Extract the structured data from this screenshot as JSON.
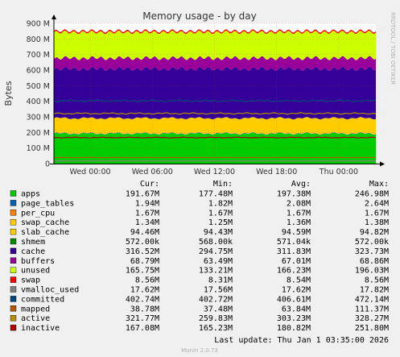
{
  "chart_data": {
    "type": "area",
    "title": "Memory usage - by day",
    "ylabel": "Bytes",
    "watermark": "RRDTOOL / TOBI OETIKER",
    "footer": "Munin 2.0.73",
    "last_update": "Last update: Thu Jan  1 03:35:00 2026",
    "ylim": [
      0,
      900
    ],
    "y_unit": "M",
    "yticks": [
      "0",
      "100 M",
      "200 M",
      "300 M",
      "400 M",
      "500 M",
      "600 M",
      "700 M",
      "800 M",
      "900 M"
    ],
    "x_range_hours": [
      -27.5,
      3.58
    ],
    "xticks": [
      {
        "label": "Wed 00:00",
        "hour": -24
      },
      {
        "label": "Wed 06:00",
        "hour": -18
      },
      {
        "label": "Wed 12:00",
        "hour": -12
      },
      {
        "label": "Wed 18:00",
        "hour": -6
      },
      {
        "label": "Thu 00:00",
        "hour": 0
      }
    ],
    "grid": true,
    "legend_placement": "bottom",
    "columns": [
      "Cur:",
      "Min:",
      "Avg:",
      "Max:"
    ],
    "stack_order": [
      "apps",
      "page_tables",
      "per_cpu",
      "swap_cache",
      "slab_cache",
      "shmem",
      "cache",
      "buffers",
      "unused",
      "swap"
    ],
    "series": [
      {
        "name": "apps",
        "color": "#00cc00",
        "cur": "191.67M",
        "min": "177.48M",
        "avg": "197.38M",
        "max": "246.98M",
        "value_m": 191.67
      },
      {
        "name": "page_tables",
        "color": "#0066b3",
        "cur": "1.94M",
        "min": "1.82M",
        "avg": "2.08M",
        "max": "2.64M",
        "value_m": 1.94
      },
      {
        "name": "per_cpu",
        "color": "#ff8000",
        "cur": "1.67M",
        "min": "1.67M",
        "avg": "1.67M",
        "max": "1.67M",
        "value_m": 1.67
      },
      {
        "name": "swap_cache",
        "color": "#ffcc00",
        "cur": "1.34M",
        "min": "1.25M",
        "avg": "1.36M",
        "max": "1.38M",
        "value_m": 1.34
      },
      {
        "name": "slab_cache",
        "color": "#ffcc00",
        "cur": "94.46M",
        "min": "94.43M",
        "avg": "94.59M",
        "max": "94.82M",
        "value_m": 94.46
      },
      {
        "name": "shmem",
        "color": "#008f00",
        "cur": "572.00k",
        "min": "568.00k",
        "avg": "571.04k",
        "max": "572.00k",
        "value_m": 0.57
      },
      {
        "name": "cache",
        "color": "#330099",
        "cur": "316.52M",
        "min": "294.75M",
        "avg": "311.83M",
        "max": "323.73M",
        "value_m": 316.52
      },
      {
        "name": "buffers",
        "color": "#990099",
        "cur": "68.79M",
        "min": "63.49M",
        "avg": "67.01M",
        "max": "68.86M",
        "value_m": 68.79
      },
      {
        "name": "unused",
        "color": "#ccff00",
        "cur": "165.75M",
        "min": "133.21M",
        "avg": "166.23M",
        "max": "196.03M",
        "value_m": 165.75
      },
      {
        "name": "swap",
        "color": "#ff0000",
        "cur": "8.56M",
        "min": "8.31M",
        "avg": "8.54M",
        "max": "8.56M",
        "value_m": 8.56
      },
      {
        "name": "vmalloc_used",
        "color": "#808080",
        "cur": "17.62M",
        "min": "17.56M",
        "avg": "17.62M",
        "max": "17.82M",
        "value_m": 17.62
      },
      {
        "name": "committed",
        "color": "#00487d",
        "cur": "402.74M",
        "min": "402.72M",
        "avg": "406.61M",
        "max": "472.14M",
        "value_m": 402.74
      },
      {
        "name": "mapped",
        "color": "#b35a00",
        "cur": "38.78M",
        "min": "37.48M",
        "avg": "63.84M",
        "max": "111.37M",
        "value_m": 38.78
      },
      {
        "name": "active",
        "color": "#b38f00",
        "cur": "321.77M",
        "min": "259.83M",
        "avg": "303.23M",
        "max": "328.27M",
        "value_m": 321.77
      },
      {
        "name": "inactive",
        "color": "#b30000",
        "cur": "167.08M",
        "min": "165.23M",
        "avg": "180.82M",
        "max": "251.80M",
        "value_m": 167.08
      }
    ]
  }
}
